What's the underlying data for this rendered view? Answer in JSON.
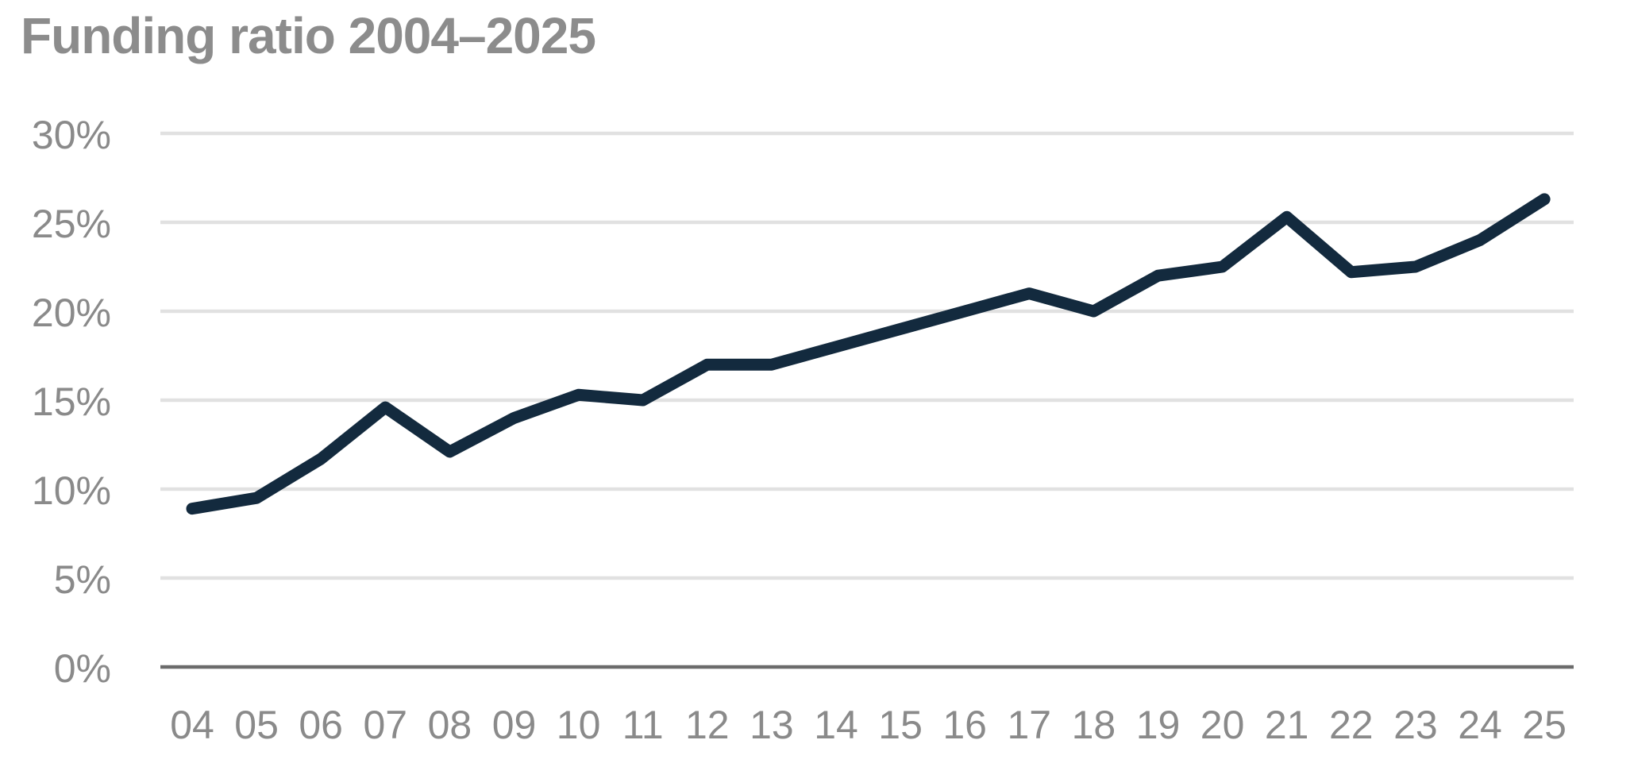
{
  "title": "Funding ratio 2004–2025",
  "colors": {
    "line": "#132a3e",
    "title_text": "#8c8c8c",
    "tick_text": "#8a8a8a",
    "gridline": "#e1e1e1",
    "zero_axis": "#6b6b6b"
  },
  "chart_data": {
    "type": "line",
    "title": "Funding ratio 2004–2025",
    "categories": [
      "04",
      "05",
      "06",
      "07",
      "08",
      "09",
      "10",
      "11",
      "12",
      "13",
      "14",
      "15",
      "16",
      "17",
      "18",
      "19",
      "20",
      "21",
      "22",
      "23",
      "24",
      "25"
    ],
    "series": [
      {
        "name": "Funding ratio",
        "values": [
          8.9,
          9.5,
          11.7,
          14.6,
          12.1,
          14.0,
          15.3,
          15.0,
          17.0,
          17.0,
          18.0,
          19.0,
          20.0,
          21.0,
          20.0,
          22.0,
          22.5,
          25.3,
          22.2,
          22.5,
          24.0,
          26.3
        ]
      }
    ],
    "y_ticks": [
      0,
      5,
      10,
      15,
      20,
      25,
      30
    ],
    "y_tick_suffix": "%",
    "ylim": [
      0,
      30
    ],
    "xlabel": "",
    "ylabel": "",
    "grid": "horizontal",
    "legend": "none"
  }
}
